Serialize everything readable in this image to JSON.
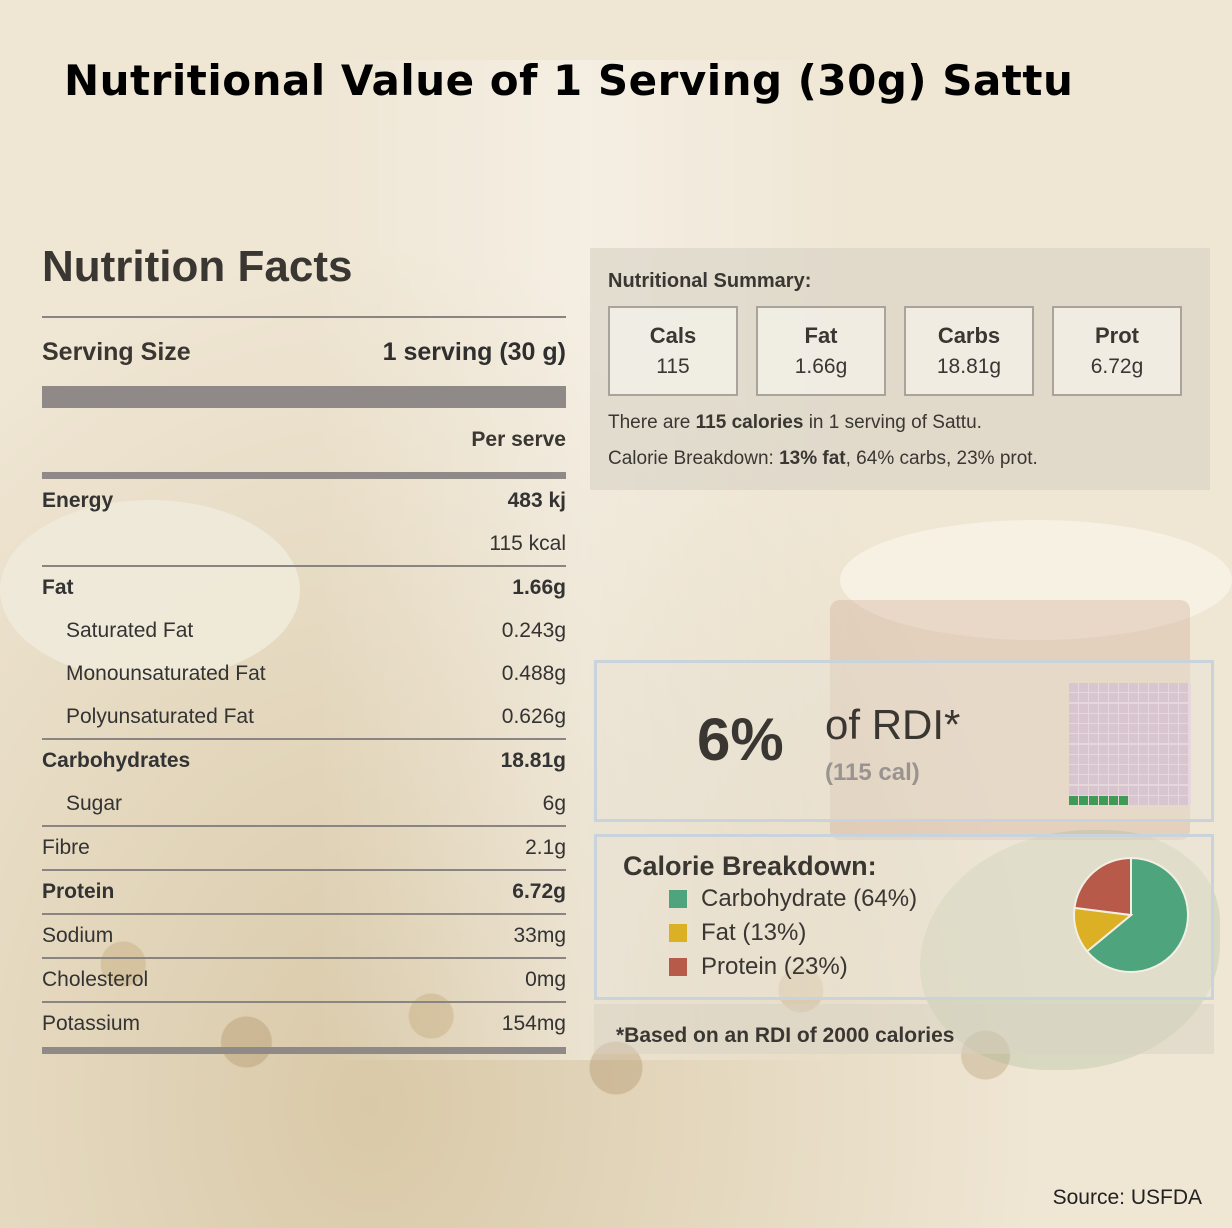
{
  "title": "Nutritional Value of 1 Serving (30g) Sattu",
  "facts": {
    "heading": "Nutrition Facts",
    "serving_label": "Serving Size",
    "serving_value": "1 serving (30 g)",
    "per_label": "Per serve",
    "rows": [
      {
        "label": "Energy",
        "value": "483 kj"
      },
      {
        "label": "",
        "value": "115 kcal"
      },
      {
        "label": "Fat",
        "value": "1.66g"
      },
      {
        "label": "Saturated Fat",
        "value": "0.243g"
      },
      {
        "label": "Monounsaturated Fat",
        "value": "0.488g"
      },
      {
        "label": "Polyunsaturated Fat",
        "value": "0.626g"
      },
      {
        "label": "Carbohydrates",
        "value": "18.81g"
      },
      {
        "label": "Sugar",
        "value": "6g"
      },
      {
        "label": "Fibre",
        "value": "2.1g"
      },
      {
        "label": "Protein",
        "value": "6.72g"
      },
      {
        "label": "Sodium",
        "value": "33mg"
      },
      {
        "label": "Cholesterol",
        "value": "0mg"
      },
      {
        "label": "Potassium",
        "value": "154mg"
      }
    ]
  },
  "summary": {
    "heading": "Nutritional Summary:",
    "boxes": [
      {
        "label": "Cals",
        "value": "115"
      },
      {
        "label": "Fat",
        "value": "1.66g"
      },
      {
        "label": "Carbs",
        "value": "18.81g"
      },
      {
        "label": "Prot",
        "value": "6.72g"
      }
    ],
    "line1": {
      "a": "There are ",
      "b": "115 calories",
      "c": " in 1 serving of Sattu."
    },
    "line2": {
      "a": "Calorie Breakdown: ",
      "b": "13% fat",
      "c": ", 64% carbs, 23% prot."
    }
  },
  "rdi": {
    "percent": "6%",
    "of_label": "of RDI*",
    "cal_label": "(115 cal)",
    "filled_fraction": 0.06
  },
  "breakdown": {
    "heading": "Calorie Breakdown:",
    "items": [
      {
        "label": "Carbohydrate (64%)",
        "percent": 64,
        "color": "#4ea57d"
      },
      {
        "label": "Fat (13%)",
        "percent": 13,
        "color": "#dcb024"
      },
      {
        "label": "Protein (23%)",
        "percent": 23,
        "color": "#b85a4a"
      }
    ]
  },
  "note": "*Based on an RDI of 2000 calories",
  "source": "Source: USFDA"
}
